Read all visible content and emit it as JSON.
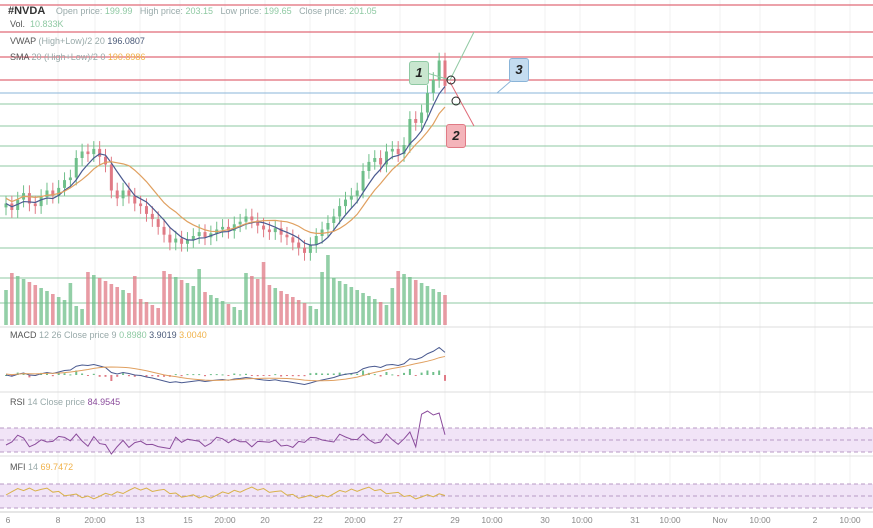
{
  "header": {
    "symbol": "#NVDA",
    "open_label": "Open price:",
    "open": "199.99",
    "high_label": "High price:",
    "high": "203.15",
    "low_label": "Low price:",
    "low": "199.65",
    "close_label": "Close price:",
    "close": "201.05",
    "vol_label": "Vol.",
    "vol": "10.833K"
  },
  "indicators": {
    "vwap": {
      "name": "VWAP",
      "params": "(High+Low)/2 20",
      "value": "196.0807"
    },
    "sma": {
      "name": "SMA",
      "params": "20 (High+Low)/2 0",
      "value": "190.8986"
    },
    "macd": {
      "name": "MACD",
      "params": "12 26 Close price 9",
      "v1": "0.8980",
      "v2": "3.9019",
      "v3": "3.0040"
    },
    "rsi": {
      "name": "RSI",
      "params": "14 Close price",
      "value": "84.9545"
    },
    "mfi": {
      "name": "MFI",
      "params": "14",
      "value": "69.7472"
    }
  },
  "annotations": [
    "1",
    "2",
    "3"
  ],
  "xaxis": [
    "6",
    "8",
    "20:00",
    "13",
    "15",
    "20:00",
    "20",
    "22",
    "20:00",
    "27",
    "29",
    "10:00",
    "30",
    "10:00",
    "31",
    "10:00",
    "Nov",
    "10:00",
    "2",
    "10:00"
  ],
  "colors": {
    "up": "#6fbf8a",
    "down": "#e07a85",
    "vwap": "#4a5a90",
    "sma": "#e0a060",
    "rsi": "#8b4c9c",
    "mfi": "#d9b24a",
    "red_line": "#e06a78",
    "green_line": "#8fc9a3",
    "blue_line": "#8ab4d8"
  },
  "chart_data": {
    "type": "candlestick",
    "closes": [
      192,
      191.5,
      192.3,
      192.8,
      192,
      191.8,
      192.5,
      193,
      192.6,
      193.2,
      193.8,
      194,
      195.5,
      196,
      195.8,
      196.2,
      195.6,
      195,
      193,
      192.4,
      193,
      192.6,
      192,
      191.8,
      191.2,
      190.8,
      190.2,
      189.6,
      189,
      189.3,
      188.9,
      189.2,
      189.5,
      189.8,
      189.4,
      189.7,
      190,
      190.2,
      189.9,
      190.4,
      190.6,
      191,
      190.7,
      190.3,
      190,
      189.8,
      190.1,
      189.6,
      189.4,
      189,
      188.6,
      188.2,
      188.8,
      189.5,
      190,
      190.5,
      191,
      191.8,
      192.3,
      192.6,
      193,
      194.5,
      195.2,
      195.5,
      195,
      196,
      196.2,
      195.8,
      196.5,
      198.5,
      198.2,
      199,
      200.5,
      201.5,
      203,
      201.05
    ]
  }
}
